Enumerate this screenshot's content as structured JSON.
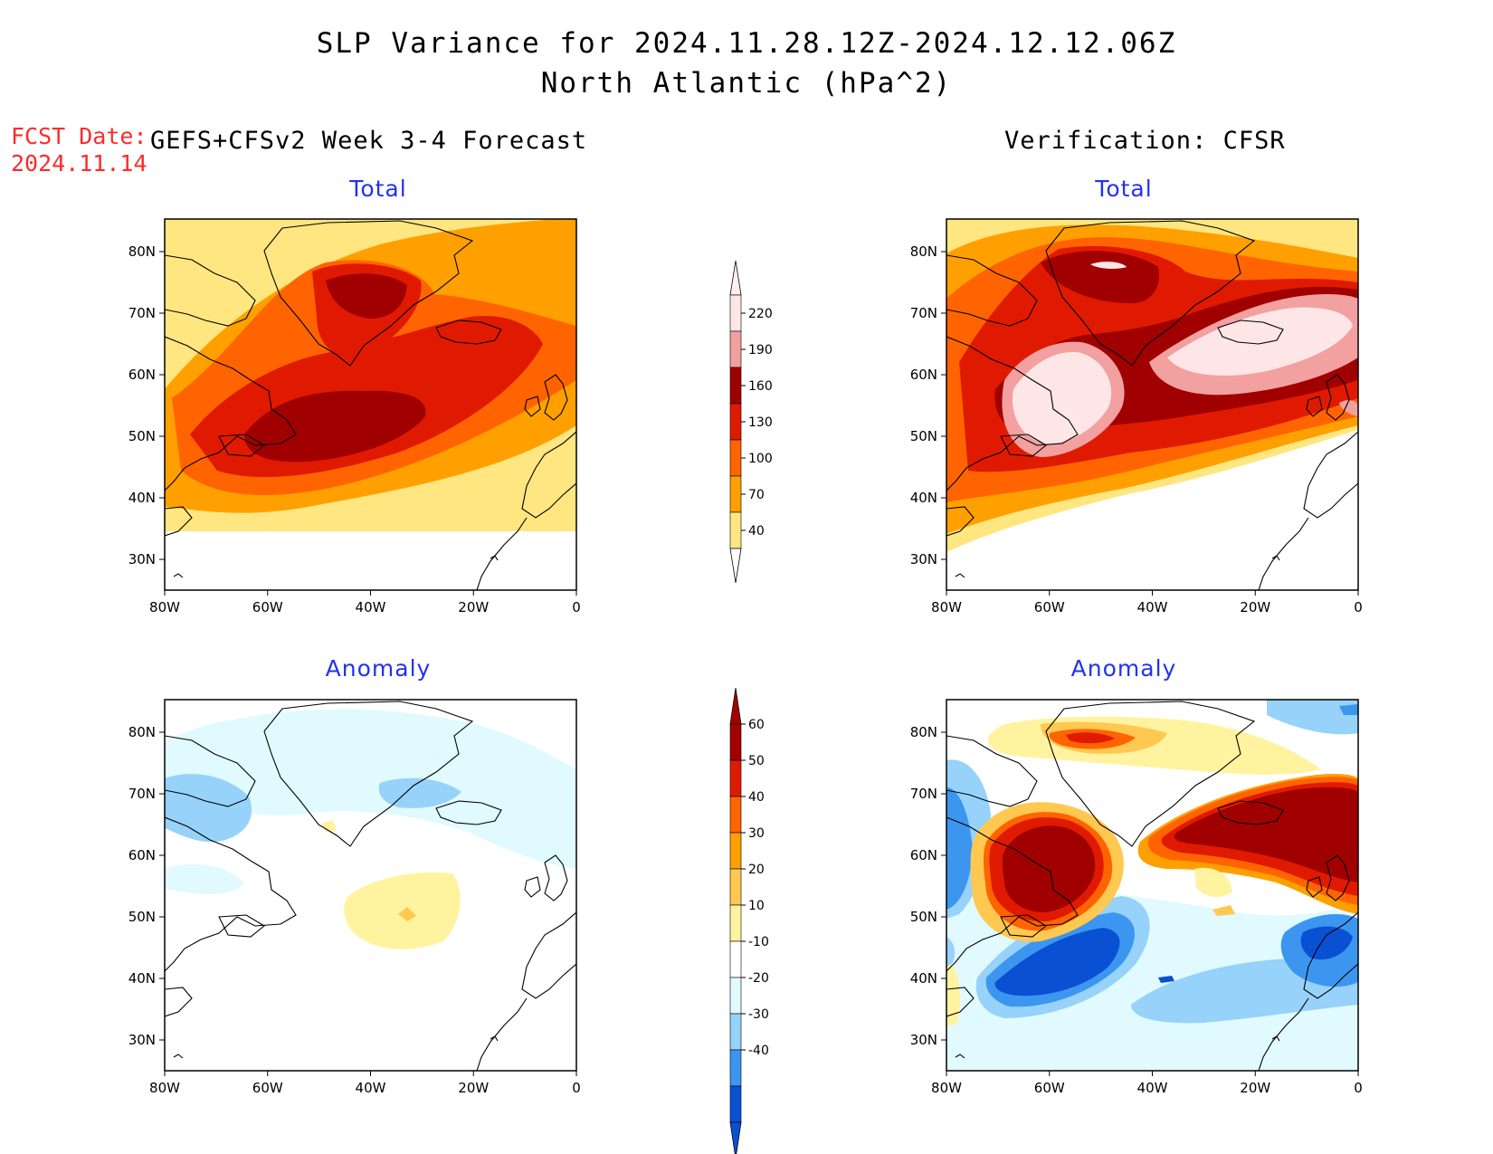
{
  "title_line1": "SLP Variance for 2024.11.28.12Z-2024.12.12.06Z",
  "title_line2": "North Atlantic (hPa^2)",
  "fcst_label": "FCST Date:",
  "fcst_date": "2024.11.14",
  "left_header": "GEFS+CFSv2 Week 3-4 Forecast",
  "right_header": "Verification: CFSR",
  "panels": {
    "forecast_total": {
      "title": "Total"
    },
    "verif_total": {
      "title": "Total"
    },
    "forecast_anomaly": {
      "title": "Anomaly"
    },
    "verif_anomaly": {
      "title": "Anomaly"
    }
  },
  "axes": {
    "lat_labels": [
      "80N",
      "70N",
      "60N",
      "50N",
      "40N",
      "30N"
    ],
    "lon_labels": [
      "80W",
      "60W",
      "40W",
      "20W",
      "0"
    ]
  },
  "colorbar_total": {
    "labels": [
      "220",
      "190",
      "160",
      "130",
      "100",
      "70",
      "40"
    ],
    "colors": [
      "#ffe6e6",
      "#f2a0a0",
      "#a00000",
      "#e01a00",
      "#ff6400",
      "#ffa000",
      "#ffe680"
    ]
  },
  "colorbar_anomaly": {
    "labels": [
      "60",
      "50",
      "40",
      "30",
      "20",
      "10",
      "-10",
      "-20",
      "-30",
      "-40"
    ],
    "colors": [
      "#a50000",
      "#e01a00",
      "#ff6400",
      "#ffa000",
      "#ffc850",
      "#fff3a0",
      "#ffffff",
      "#e0faff",
      "#96d2fa",
      "#3c96f0",
      "#0a50d2"
    ]
  }
}
